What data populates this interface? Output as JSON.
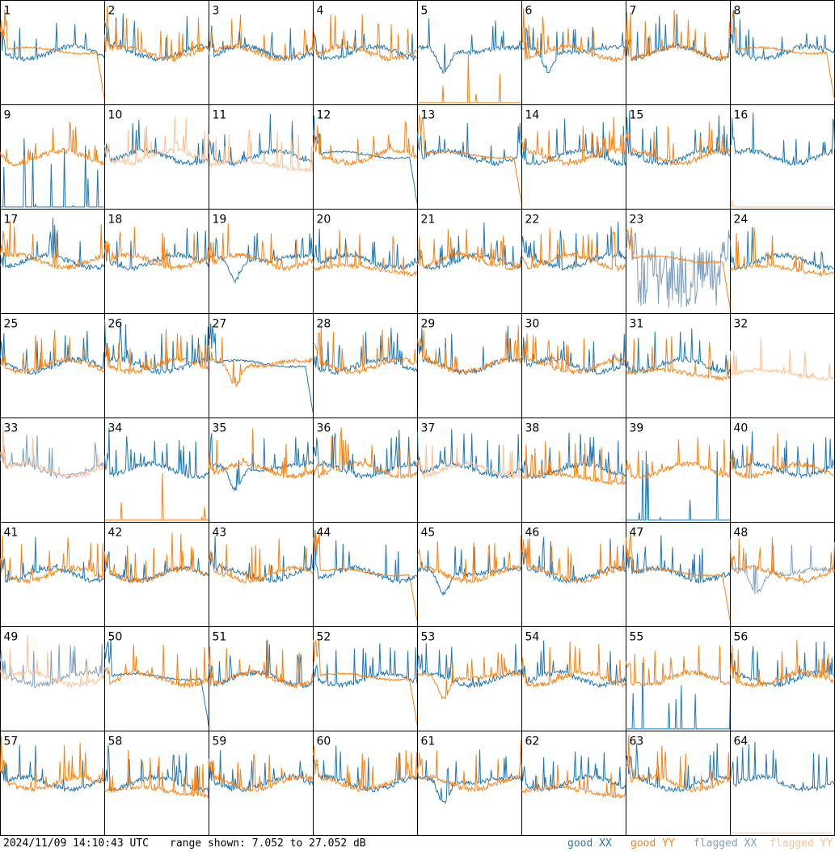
{
  "footer": {
    "timestamp": "2024/11/09 14:10:43 UTC",
    "range_text": "range shown: 7.052 to 27.052 dB"
  },
  "legend": [
    {
      "label": "good XX",
      "color": "#1f77b4"
    },
    {
      "label": "good YY",
      "color": "#ff7f0e"
    },
    {
      "label": "flagged XX",
      "color": "#7f9fbf"
    },
    {
      "label": "flagged YY",
      "color": "#ffbf90"
    }
  ],
  "chart_data": {
    "type": "line",
    "layout": "8x8 small multiples, one panel per antenna input",
    "ylim_db": [
      7.052,
      27.052
    ],
    "x_axis": "frequency channel (unlabeled)",
    "grid": false,
    "legend_position": "bottom-right",
    "panels": [
      {
        "id": "1",
        "xx": "good",
        "yy": "good",
        "xx_shape": "spiky",
        "yy_shape": "bandpass"
      },
      {
        "id": "2",
        "xx": "good",
        "yy": "good",
        "xx_shape": "spiky",
        "yy_shape": "spiky"
      },
      {
        "id": "3",
        "xx": "good",
        "yy": "good",
        "xx_shape": "spiky",
        "yy_shape": "spiky"
      },
      {
        "id": "4",
        "xx": "good",
        "yy": "good",
        "xx_shape": "spiky",
        "yy_shape": "spiky"
      },
      {
        "id": "5",
        "xx": "good",
        "yy": "good",
        "xx_shape": "dip",
        "yy_shape": "flatlow"
      },
      {
        "id": "6",
        "xx": "good",
        "yy": "good",
        "xx_shape": "dip",
        "yy_shape": "spiky"
      },
      {
        "id": "7",
        "xx": "good",
        "yy": "good",
        "xx_shape": "spiky",
        "yy_shape": "spiky"
      },
      {
        "id": "8",
        "xx": "good",
        "yy": "good",
        "xx_shape": "spiky",
        "yy_shape": "bandpass"
      },
      {
        "id": "9",
        "xx": "good",
        "yy": "good",
        "xx_shape": "lowspikes",
        "yy_shape": "spiky"
      },
      {
        "id": "10",
        "xx": "good",
        "yy": "flagged",
        "xx_shape": "spiky",
        "yy_shape": "spiky"
      },
      {
        "id": "11",
        "xx": "good",
        "yy": "flagged",
        "xx_shape": "spiky",
        "yy_shape": "spikylow"
      },
      {
        "id": "12",
        "xx": "good",
        "yy": "good",
        "xx_shape": "bandpass",
        "yy_shape": "spiky"
      },
      {
        "id": "13",
        "xx": "good",
        "yy": "good",
        "xx_shape": "spiky",
        "yy_shape": "bandpass"
      },
      {
        "id": "14",
        "xx": "good",
        "yy": "good",
        "xx_shape": "spiky",
        "yy_shape": "spiky"
      },
      {
        "id": "15",
        "xx": "good",
        "yy": "good",
        "xx_shape": "spiky",
        "yy_shape": "spiky"
      },
      {
        "id": "16",
        "xx": "good",
        "yy": "flagged",
        "xx_shape": "spiky",
        "yy_shape": "flatlow"
      },
      {
        "id": "17",
        "xx": "good",
        "yy": "good",
        "xx_shape": "spiky",
        "yy_shape": "spiky"
      },
      {
        "id": "18",
        "xx": "good",
        "yy": "good",
        "xx_shape": "spiky",
        "yy_shape": "spiky"
      },
      {
        "id": "19",
        "xx": "good",
        "yy": "good",
        "xx_shape": "dip",
        "yy_shape": "spiky"
      },
      {
        "id": "20",
        "xx": "good",
        "yy": "good",
        "xx_shape": "spiky",
        "yy_shape": "spikylow"
      },
      {
        "id": "21",
        "xx": "good",
        "yy": "good",
        "xx_shape": "spiky",
        "yy_shape": "spiky"
      },
      {
        "id": "22",
        "xx": "good",
        "yy": "good",
        "xx_shape": "spiky",
        "yy_shape": "spiky"
      },
      {
        "id": "23",
        "xx": "flagged",
        "yy": "good",
        "xx_shape": "noise",
        "yy_shape": "bandpass"
      },
      {
        "id": "24",
        "xx": "good",
        "yy": "good",
        "xx_shape": "spiky",
        "yy_shape": "spikylow"
      },
      {
        "id": "25",
        "xx": "good",
        "yy": "good",
        "xx_shape": "spiky",
        "yy_shape": "spiky"
      },
      {
        "id": "26",
        "xx": "good",
        "yy": "good",
        "xx_shape": "spiky",
        "yy_shape": "spiky"
      },
      {
        "id": "27",
        "xx": "good",
        "yy": "good",
        "xx_shape": "bandpass",
        "yy_shape": "dip"
      },
      {
        "id": "28",
        "xx": "good",
        "yy": "good",
        "xx_shape": "spiky",
        "yy_shape": "spiky"
      },
      {
        "id": "29",
        "xx": "good",
        "yy": "good",
        "xx_shape": "spiky",
        "yy_shape": "spiky"
      },
      {
        "id": "30",
        "xx": "good",
        "yy": "good",
        "xx_shape": "spiky",
        "yy_shape": "spiky"
      },
      {
        "id": "31",
        "xx": "good",
        "yy": "good",
        "xx_shape": "spiky",
        "yy_shape": "spikylow"
      },
      {
        "id": "32",
        "xx": "good",
        "yy": "flagged",
        "xx_shape": "none",
        "yy_shape": "spikylow"
      },
      {
        "id": "33",
        "xx": "flagged",
        "yy": "flagged",
        "xx_shape": "spiky",
        "yy_shape": "spiky"
      },
      {
        "id": "34",
        "xx": "good",
        "yy": "good",
        "xx_shape": "spiky",
        "yy_shape": "flatlow"
      },
      {
        "id": "35",
        "xx": "good",
        "yy": "good",
        "xx_shape": "dip",
        "yy_shape": "spiky"
      },
      {
        "id": "36",
        "xx": "good",
        "yy": "good",
        "xx_shape": "spiky",
        "yy_shape": "spiky"
      },
      {
        "id": "37",
        "xx": "good",
        "yy": "flagged",
        "xx_shape": "spiky",
        "yy_shape": "spiky"
      },
      {
        "id": "38",
        "xx": "good",
        "yy": "good",
        "xx_shape": "spiky",
        "yy_shape": "spikylow"
      },
      {
        "id": "39",
        "xx": "good",
        "yy": "good",
        "xx_shape": "lowspikes",
        "yy_shape": "spiky"
      },
      {
        "id": "40",
        "xx": "good",
        "yy": "good",
        "xx_shape": "spiky",
        "yy_shape": "spiky"
      },
      {
        "id": "41",
        "xx": "good",
        "yy": "good",
        "xx_shape": "spiky",
        "yy_shape": "spiky"
      },
      {
        "id": "42",
        "xx": "good",
        "yy": "good",
        "xx_shape": "spiky",
        "yy_shape": "spiky"
      },
      {
        "id": "43",
        "xx": "good",
        "yy": "good",
        "xx_shape": "spiky",
        "yy_shape": "spiky"
      },
      {
        "id": "44",
        "xx": "good",
        "yy": "good",
        "xx_shape": "spiky",
        "yy_shape": "bandpass"
      },
      {
        "id": "45",
        "xx": "good",
        "yy": "good",
        "xx_shape": "dip",
        "yy_shape": "spiky"
      },
      {
        "id": "46",
        "xx": "good",
        "yy": "good",
        "xx_shape": "spiky",
        "yy_shape": "spiky"
      },
      {
        "id": "47",
        "xx": "good",
        "yy": "good",
        "xx_shape": "spiky",
        "yy_shape": "bandpass"
      },
      {
        "id": "48",
        "xx": "flagged",
        "yy": "good",
        "xx_shape": "dip",
        "yy_shape": "spiky"
      },
      {
        "id": "49",
        "xx": "flagged",
        "yy": "flagged",
        "xx_shape": "spiky",
        "yy_shape": "spiky"
      },
      {
        "id": "50",
        "xx": "good",
        "yy": "good",
        "xx_shape": "bandpass",
        "yy_shape": "spiky"
      },
      {
        "id": "51",
        "xx": "good",
        "yy": "good",
        "xx_shape": "spiky",
        "yy_shape": "spiky"
      },
      {
        "id": "52",
        "xx": "good",
        "yy": "good",
        "xx_shape": "spiky",
        "yy_shape": "bandpass"
      },
      {
        "id": "53",
        "xx": "good",
        "yy": "good",
        "xx_shape": "spiky",
        "yy_shape": "dip"
      },
      {
        "id": "54",
        "xx": "good",
        "yy": "good",
        "xx_shape": "spiky",
        "yy_shape": "spiky"
      },
      {
        "id": "55",
        "xx": "good",
        "yy": "good",
        "xx_shape": "lowspikes",
        "yy_shape": "spiky"
      },
      {
        "id": "56",
        "xx": "good",
        "yy": "good",
        "xx_shape": "spiky",
        "yy_shape": "spiky"
      },
      {
        "id": "57",
        "xx": "good",
        "yy": "good",
        "xx_shape": "spiky",
        "yy_shape": "spiky"
      },
      {
        "id": "58",
        "xx": "good",
        "yy": "good",
        "xx_shape": "spiky",
        "yy_shape": "spikylow"
      },
      {
        "id": "59",
        "xx": "good",
        "yy": "good",
        "xx_shape": "spiky",
        "yy_shape": "spiky"
      },
      {
        "id": "60",
        "xx": "good",
        "yy": "good",
        "xx_shape": "spiky",
        "yy_shape": "spiky"
      },
      {
        "id": "61",
        "xx": "good",
        "yy": "good",
        "xx_shape": "dip",
        "yy_shape": "spiky"
      },
      {
        "id": "62",
        "xx": "good",
        "yy": "good",
        "xx_shape": "spiky",
        "yy_shape": "spikylow"
      },
      {
        "id": "63",
        "xx": "good",
        "yy": "good",
        "xx_shape": "spiky",
        "yy_shape": "spiky"
      },
      {
        "id": "64",
        "xx": "good",
        "yy": "flagged",
        "xx_shape": "spiky",
        "yy_shape": "flatlow"
      }
    ]
  }
}
